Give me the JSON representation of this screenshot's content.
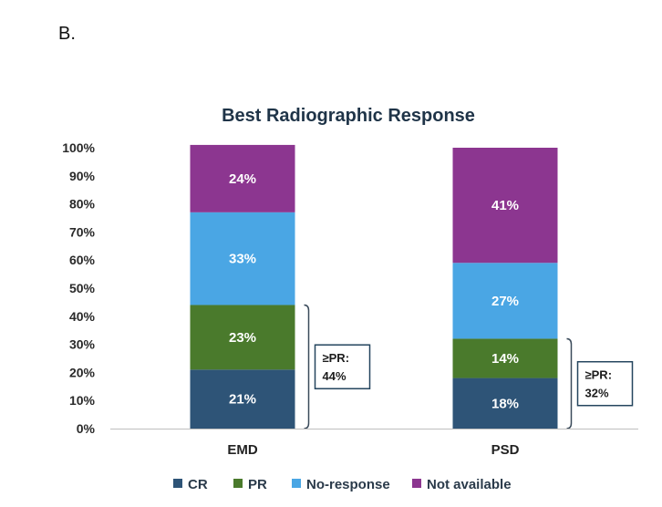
{
  "panel_label": "B.",
  "chart_data": {
    "type": "bar",
    "stacked": true,
    "title": "Best Radiographic Response",
    "categories": [
      "EMD",
      "PSD"
    ],
    "y_ticks": [
      "0%",
      "10%",
      "20%",
      "30%",
      "40%",
      "50%",
      "60%",
      "70%",
      "80%",
      "90%",
      "100%"
    ],
    "ylim": [
      0,
      100
    ],
    "grid": false,
    "legend_position": "bottom",
    "series": [
      {
        "name": "CR",
        "values": [
          21,
          18
        ],
        "labels": [
          "21%",
          "18%"
        ],
        "color": "#2e5477"
      },
      {
        "name": "PR",
        "values": [
          23,
          14
        ],
        "labels": [
          "23%",
          "14%"
        ],
        "color": "#4a7a2c"
      },
      {
        "name": "No-response",
        "values": [
          33,
          27
        ],
        "labels": [
          "33%",
          "27%"
        ],
        "color": "#4aa6e4"
      },
      {
        "name": "Not available",
        "values": [
          24,
          41
        ],
        "labels": [
          "24%",
          "41%"
        ],
        "color": "#8c3690"
      }
    ],
    "annotations": [
      {
        "category": "EMD",
        "line1": "≥PR:",
        "line2": "44%",
        "span": [
          0,
          44
        ]
      },
      {
        "category": "PSD",
        "line1": "≥PR:",
        "line2": "32%",
        "span": [
          0,
          32
        ]
      }
    ]
  }
}
